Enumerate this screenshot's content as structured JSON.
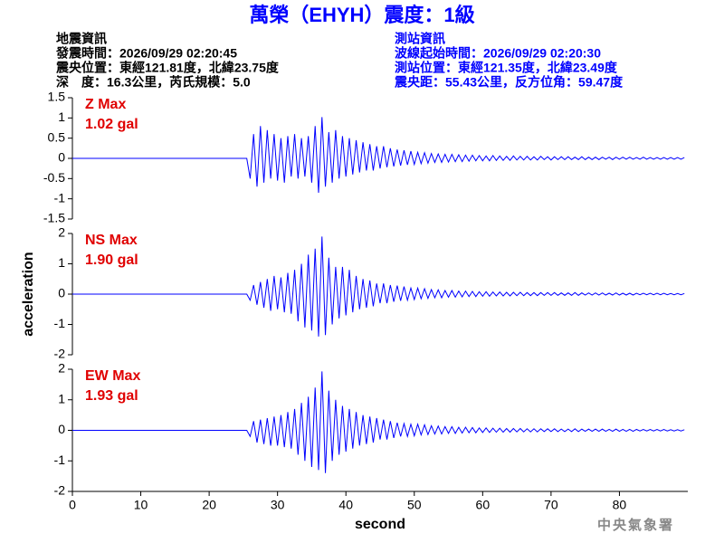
{
  "title": "萬榮（EHYH）震度：1級",
  "event_info": [
    "地震資訊",
    "發震時間：2026/09/29 02:20:45",
    "震央位置：東經121.81度，北緯23.75度",
    "深　度：16.3公里，芮氏規模：5.0"
  ],
  "station_info": [
    "測站資訊",
    "波線起始時間：2026/09/29 02:20:30",
    "測站位置：東經121.35度，北緯23.49度",
    "震央距：55.43公里，反方位角：59.47度"
  ],
  "footer": "中央氣象署",
  "chart_data": [
    {
      "type": "line",
      "annotations": [
        "Z Max",
        "1.02 gal"
      ],
      "color": "#0000ff",
      "xlim": [
        0,
        90
      ],
      "ylim": [
        -1.5,
        1.5
      ],
      "yticks": [
        -1.5,
        -1,
        -0.5,
        0,
        0.5,
        1,
        1.5
      ],
      "x": [
        0,
        25.5,
        26,
        26.5,
        27,
        27.5,
        28,
        28.5,
        29,
        29.5,
        30,
        30.5,
        31,
        31.5,
        32,
        32.5,
        33,
        33.5,
        34,
        34.5,
        35,
        35.5,
        36,
        36.5,
        37,
        37.5,
        38,
        38.5,
        39,
        39.5,
        40,
        40.5,
        41,
        41.5,
        42,
        42.5,
        43,
        43.5,
        44,
        44.5,
        45,
        45.5,
        46,
        46.5,
        47,
        47.5,
        48,
        48.5,
        49,
        49.5,
        50,
        50.5,
        51,
        51.5,
        52,
        52.5,
        53,
        53.5,
        54,
        54.5,
        55,
        55.5,
        56,
        56.5,
        57,
        57.5,
        58,
        58.5,
        59,
        59.5,
        60,
        60.5,
        61,
        61.5,
        62,
        62.5,
        63,
        63.5,
        64,
        64.5,
        65,
        65.5,
        66,
        66.5,
        67,
        67.5,
        68,
        68.5,
        69,
        69.5,
        70,
        70.5,
        71,
        71.5,
        72,
        72.5,
        73,
        73.5,
        74,
        74.5,
        75,
        75.5,
        76,
        76.5,
        77,
        77.5,
        78,
        78.5,
        79,
        79.5,
        80,
        80.5,
        81,
        81.5,
        82,
        82.5,
        83,
        83.5,
        84,
        84.5,
        85,
        85.5,
        86,
        86.5,
        87,
        87.5,
        88,
        88.5,
        89,
        89.5
      ],
      "values": [
        0,
        0,
        -0.5,
        0.6,
        -0.7,
        0.8,
        -0.6,
        0.7,
        -0.5,
        0.6,
        -0.55,
        0.5,
        -0.6,
        0.55,
        -0.45,
        0.6,
        -0.5,
        0.5,
        -0.45,
        0.55,
        -0.6,
        0.8,
        -0.85,
        1.02,
        -0.7,
        0.65,
        -0.6,
        0.7,
        -0.5,
        0.55,
        -0.45,
        0.5,
        -0.4,
        0.45,
        -0.35,
        0.4,
        -0.3,
        0.35,
        -0.3,
        0.3,
        -0.25,
        0.3,
        -0.22,
        0.25,
        -0.2,
        0.22,
        -0.18,
        0.2,
        -0.16,
        0.18,
        -0.15,
        0.15,
        -0.13,
        0.14,
        -0.12,
        0.12,
        -0.1,
        0.11,
        -0.1,
        0.1,
        -0.09,
        0.1,
        -0.08,
        0.09,
        -0.08,
        0.08,
        -0.07,
        0.08,
        -0.06,
        0.07,
        -0.06,
        0.06,
        -0.06,
        0.07,
        -0.05,
        0.06,
        -0.05,
        0.05,
        -0.05,
        0.06,
        -0.04,
        0.05,
        -0.04,
        0.05,
        -0.04,
        0.04,
        -0.04,
        0.05,
        -0.03,
        0.04,
        -0.04,
        0.04,
        -0.03,
        0.04,
        -0.03,
        0.04,
        -0.03,
        0.03,
        -0.03,
        0.04,
        -0.03,
        0.03,
        -0.03,
        0.03,
        -0.03,
        0.03,
        -0.02,
        0.03,
        -0.03,
        0.03,
        -0.02,
        0.03,
        -0.02,
        0.03,
        -0.02,
        0.02,
        -0.02,
        0.03,
        -0.02,
        0.02,
        -0.02,
        0.02,
        -0.02,
        0.02,
        -0.02,
        0.02,
        -0.02,
        0.02,
        -0.02,
        0.02
      ]
    },
    {
      "type": "line",
      "annotations": [
        "NS Max",
        "1.90 gal"
      ],
      "color": "#0000ff",
      "ylabel": "acceleration",
      "xlim": [
        0,
        90
      ],
      "ylim": [
        -2,
        2
      ],
      "yticks": [
        -2,
        -1,
        0,
        1,
        2
      ],
      "x": [
        0,
        25.5,
        26,
        26.5,
        27,
        27.5,
        28,
        28.5,
        29,
        29.5,
        30,
        30.5,
        31,
        31.5,
        32,
        32.5,
        33,
        33.5,
        34,
        34.5,
        35,
        35.5,
        36,
        36.5,
        37,
        37.5,
        38,
        38.5,
        39,
        39.5,
        40,
        40.5,
        41,
        41.5,
        42,
        42.5,
        43,
        43.5,
        44,
        44.5,
        45,
        45.5,
        46,
        46.5,
        47,
        47.5,
        48,
        48.5,
        49,
        49.5,
        50,
        50.5,
        51,
        51.5,
        52,
        52.5,
        53,
        53.5,
        54,
        54.5,
        55,
        55.5,
        56,
        56.5,
        57,
        57.5,
        58,
        58.5,
        59,
        59.5,
        60,
        60.5,
        61,
        61.5,
        62,
        62.5,
        63,
        63.5,
        64,
        64.5,
        65,
        65.5,
        66,
        66.5,
        67,
        67.5,
        68,
        68.5,
        69,
        69.5,
        70,
        70.5,
        71,
        71.5,
        72,
        72.5,
        73,
        73.5,
        74,
        74.5,
        75,
        75.5,
        76,
        76.5,
        77,
        77.5,
        78,
        78.5,
        79,
        79.5,
        80,
        80.5,
        81,
        81.5,
        82,
        82.5,
        83,
        83.5,
        84,
        84.5,
        85,
        85.5,
        86,
        86.5,
        87,
        87.5,
        88,
        88.5,
        89,
        89.5
      ],
      "values": [
        0,
        0,
        -0.2,
        0.3,
        -0.35,
        0.4,
        -0.45,
        0.5,
        -0.55,
        0.6,
        -0.5,
        0.55,
        -0.6,
        0.7,
        -0.65,
        0.8,
        -0.9,
        1.0,
        -1.1,
        1.3,
        -1.2,
        1.5,
        -1.4,
        1.9,
        -1.35,
        1.2,
        -1.0,
        0.9,
        -0.8,
        0.9,
        -0.7,
        0.8,
        -0.6,
        0.6,
        -0.5,
        0.5,
        -0.45,
        0.45,
        -0.4,
        0.35,
        -0.3,
        0.35,
        -0.3,
        0.3,
        -0.25,
        0.28,
        -0.22,
        0.25,
        -0.2,
        0.2,
        -0.18,
        0.2,
        -0.15,
        0.18,
        -0.14,
        0.15,
        -0.12,
        0.14,
        -0.12,
        0.12,
        -0.1,
        0.12,
        -0.1,
        0.1,
        -0.09,
        0.1,
        -0.08,
        0.09,
        -0.08,
        0.08,
        -0.07,
        0.08,
        -0.07,
        0.07,
        -0.06,
        0.07,
        -0.06,
        0.06,
        -0.06,
        0.06,
        -0.05,
        0.06,
        -0.05,
        0.05,
        -0.05,
        0.05,
        -0.05,
        0.05,
        -0.04,
        0.05,
        -0.04,
        0.05,
        -0.04,
        0.04,
        -0.04,
        0.04,
        -0.04,
        0.05,
        -0.04,
        0.04,
        -0.03,
        0.04,
        -0.03,
        0.04,
        -0.03,
        0.04,
        -0.03,
        0.03,
        -0.03,
        0.04,
        -0.03,
        0.03,
        -0.03,
        0.03,
        -0.03,
        0.03,
        -0.02,
        0.03,
        -0.02,
        0.03,
        -0.02,
        0.03,
        -0.02,
        0.03,
        -0.02,
        0.02,
        -0.02,
        0.02,
        -0.02,
        0.02
      ]
    },
    {
      "type": "line",
      "annotations": [
        "EW Max",
        "1.93 gal"
      ],
      "color": "#0000ff",
      "xlabel": "second",
      "xlim": [
        0,
        90
      ],
      "xticks": [
        0,
        10,
        20,
        30,
        40,
        50,
        60,
        70,
        80
      ],
      "ylim": [
        -2,
        2
      ],
      "yticks": [
        -2,
        -1,
        0,
        1,
        2
      ],
      "x": [
        0,
        25.5,
        26,
        26.5,
        27,
        27.5,
        28,
        28.5,
        29,
        29.5,
        30,
        30.5,
        31,
        31.5,
        32,
        32.5,
        33,
        33.5,
        34,
        34.5,
        35,
        35.5,
        36,
        36.5,
        37,
        37.5,
        38,
        38.5,
        39,
        39.5,
        40,
        40.5,
        41,
        41.5,
        42,
        42.5,
        43,
        43.5,
        44,
        44.5,
        45,
        45.5,
        46,
        46.5,
        47,
        47.5,
        48,
        48.5,
        49,
        49.5,
        50,
        50.5,
        51,
        51.5,
        52,
        52.5,
        53,
        53.5,
        54,
        54.5,
        55,
        55.5,
        56,
        56.5,
        57,
        57.5,
        58,
        58.5,
        59,
        59.5,
        60,
        60.5,
        61,
        61.5,
        62,
        62.5,
        63,
        63.5,
        64,
        64.5,
        65,
        65.5,
        66,
        66.5,
        67,
        67.5,
        68,
        68.5,
        69,
        69.5,
        70,
        70.5,
        71,
        71.5,
        72,
        72.5,
        73,
        73.5,
        74,
        74.5,
        75,
        75.5,
        76,
        76.5,
        77,
        77.5,
        78,
        78.5,
        79,
        79.5,
        80,
        80.5,
        81,
        81.5,
        82,
        82.5,
        83,
        83.5,
        84,
        84.5,
        85,
        85.5,
        86,
        86.5,
        87,
        87.5,
        88,
        88.5,
        89,
        89.5
      ],
      "values": [
        0,
        0,
        -0.2,
        0.3,
        -0.4,
        0.35,
        -0.45,
        0.4,
        -0.5,
        0.45,
        -0.5,
        0.5,
        -0.55,
        0.6,
        -0.6,
        0.7,
        -0.8,
        0.9,
        -1.0,
        1.1,
        -1.2,
        1.4,
        -1.3,
        1.93,
        -1.4,
        1.3,
        -1.0,
        1.0,
        -0.8,
        0.8,
        -0.7,
        0.7,
        -0.6,
        0.6,
        -0.5,
        0.5,
        -0.45,
        0.45,
        -0.4,
        0.4,
        -0.3,
        0.35,
        -0.3,
        0.3,
        -0.25,
        0.25,
        -0.2,
        0.22,
        -0.2,
        0.2,
        -0.18,
        0.2,
        -0.15,
        0.18,
        -0.14,
        0.15,
        -0.12,
        0.14,
        -0.12,
        0.12,
        -0.1,
        0.12,
        -0.1,
        0.1,
        -0.09,
        0.1,
        -0.08,
        0.09,
        -0.08,
        0.08,
        -0.07,
        0.08,
        -0.07,
        0.07,
        -0.06,
        0.07,
        -0.06,
        0.06,
        -0.06,
        0.06,
        -0.05,
        0.06,
        -0.05,
        0.05,
        -0.05,
        0.05,
        -0.05,
        0.05,
        -0.04,
        0.05,
        -0.04,
        0.05,
        -0.04,
        0.04,
        -0.04,
        0.04,
        -0.04,
        0.05,
        -0.04,
        0.04,
        -0.03,
        0.04,
        -0.03,
        0.04,
        -0.03,
        0.04,
        -0.03,
        0.03,
        -0.03,
        0.04,
        -0.03,
        0.03,
        -0.03,
        0.03,
        -0.03,
        0.03,
        -0.02,
        0.03,
        -0.02,
        0.03,
        -0.02,
        0.03,
        -0.02,
        0.03,
        -0.02,
        0.02,
        -0.02,
        0.02,
        -0.02,
        0.02
      ]
    }
  ]
}
